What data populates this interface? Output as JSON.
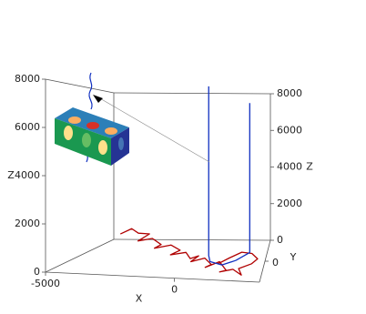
{
  "chart_data": {
    "type": "line3d",
    "xlabel": "X",
    "ylabel": "Y",
    "zlabel": "Z",
    "xlim": [
      -5000,
      3300
    ],
    "ylim": [
      -2000,
      2000
    ],
    "zlim": [
      0,
      8000
    ],
    "xticks": [
      -5000,
      0
    ],
    "yticks": [
      0
    ],
    "zticks": [
      0,
      2000,
      4000,
      6000,
      8000
    ],
    "series": [
      {
        "color": "#b00000",
        "x": [
          -3500,
          -3100,
          -2600,
          -2200,
          -2500,
          -1900,
          -1400,
          -1600,
          -1000,
          -500,
          -800,
          -200,
          100,
          400,
          200,
          700,
          1100,
          900,
          1400,
          1800,
          1600,
          2100,
          2500,
          2300,
          2800,
          3000,
          2700,
          2200,
          1700,
          1300
        ],
        "y": [
          500,
          700,
          400,
          600,
          200,
          300,
          100,
          -100,
          200,
          0,
          -300,
          -100,
          -400,
          -200,
          -600,
          -300,
          -700,
          -900,
          -500,
          -1000,
          -1300,
          -1100,
          -1400,
          -900,
          -600,
          -200,
          100,
          300,
          0,
          -400
        ],
        "z": [
          900,
          1100,
          1000,
          900,
          700,
          800,
          600,
          500,
          550,
          400,
          300,
          350,
          200,
          250,
          150,
          200,
          100,
          50,
          150,
          0,
          50,
          100,
          0,
          50,
          150,
          200,
          300,
          250,
          100,
          0
        ]
      },
      {
        "color": "#1030c0",
        "x": [
          650,
          650,
          900,
          1500,
          2000,
          2470,
          2470
        ],
        "y": [
          400,
          400,
          -200,
          -500,
          0,
          800,
          800
        ],
        "z": [
          8200,
          0,
          0,
          0,
          0,
          0,
          7450
        ]
      }
    ]
  }
}
